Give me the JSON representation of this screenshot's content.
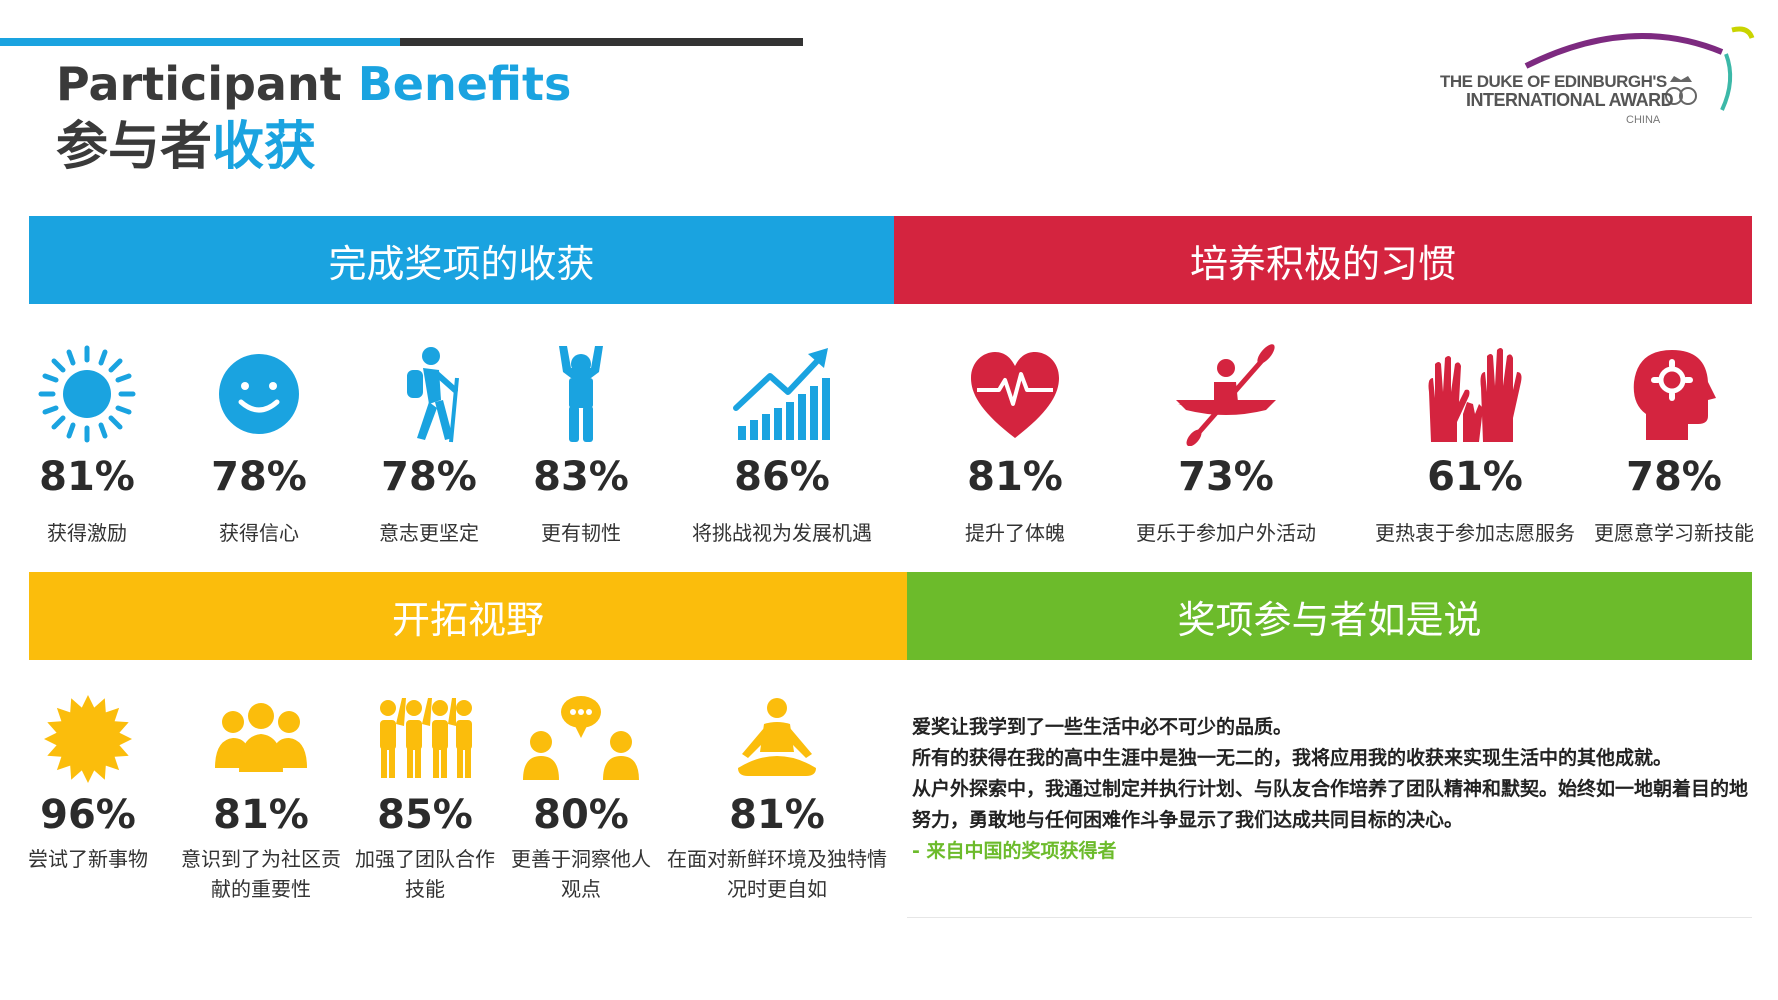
{
  "header": {
    "title_en_1": "Participant",
    "title_en_2": "Benefits",
    "title_cn_1": "参与者",
    "title_cn_2": "收获"
  },
  "logo": {
    "line1": "THE DUKE OF EDINBURGH'S",
    "line2": "INTERNATIONAL AWARD",
    "line3": "CHINA"
  },
  "sections": {
    "s1": "完成奖项的收获",
    "s2": "培养积极的习惯",
    "s3": "开拓视野",
    "s4": "奖项参与者如是说"
  },
  "row1": [
    {
      "pct": "81%",
      "label": "获得激励",
      "icon": "sun-icon"
    },
    {
      "pct": "78%",
      "label": "获得信心",
      "icon": "smiley-icon"
    },
    {
      "pct": "78%",
      "label": "意志更坚定",
      "icon": "hiker-icon"
    },
    {
      "pct": "83%",
      "label": "更有韧性",
      "icon": "person-arms-up-icon"
    },
    {
      "pct": "86%",
      "label": "将挑战视为发展机遇",
      "icon": "growth-chart-icon"
    }
  ],
  "row2": [
    {
      "pct": "81%",
      "label": "提升了体魄",
      "icon": "heart-pulse-icon"
    },
    {
      "pct": "73%",
      "label": "更乐于参加户外活动",
      "icon": "kayak-icon"
    },
    {
      "pct": "61%",
      "label": "更热衷于参加志愿服务",
      "icon": "raised-hands-icon"
    },
    {
      "pct": "78%",
      "label": "更愿意学习新技能",
      "icon": "head-gear-icon"
    }
  ],
  "row3": [
    {
      "pct": "96%",
      "label": "尝试了新事物",
      "icon": "burst-icon"
    },
    {
      "pct": "81%",
      "label": "意识到了为社区贡献的重要性",
      "icon": "group-icon"
    },
    {
      "pct": "85%",
      "label": "加强了团队合作技能",
      "icon": "team-icon"
    },
    {
      "pct": "80%",
      "label": "更善于洞察他人观点",
      "icon": "conversation-icon"
    },
    {
      "pct": "81%",
      "label": "在面对新鲜环境及独特情况时更自如",
      "icon": "meditation-icon"
    }
  ],
  "quote": {
    "l1": "爱奖让我学到了一些生活中必不可少的品质。",
    "l2": "所有的获得在我的高中生涯中是独一无二的，我将应用我的收获来实现生活中的其他成就。",
    "l3": "从户外探索中，我通过制定并执行计划、与队友合作培养了团队精神和默契。始终如一地朝着目的地努力，勇敢地与任何困难作斗争显示了我们达成共同目标的决心。",
    "src": "- 来自中国的奖项获得者"
  },
  "colors": {
    "blue": "#1aa3e0",
    "red": "#d4243f",
    "yellow": "#fbbd0c",
    "green": "#6cbb2b"
  }
}
